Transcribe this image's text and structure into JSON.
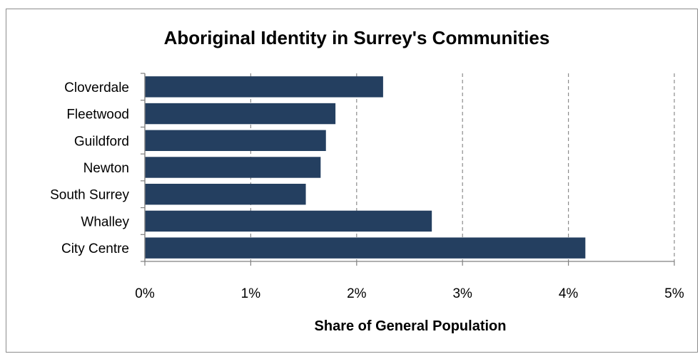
{
  "chart_data": {
    "type": "bar",
    "orientation": "horizontal",
    "title": "Aboriginal Identity in Surrey's Communities",
    "xlabel": "Share of General Population",
    "ylabel": "",
    "categories": [
      "Cloverdale",
      "Fleetwood",
      "Guildford",
      "Newton",
      "South Surrey",
      "Whalley",
      "City Centre"
    ],
    "values": [
      2.25,
      1.8,
      1.71,
      1.66,
      1.52,
      2.71,
      4.16
    ],
    "value_unit": "%",
    "xlim": [
      0,
      5
    ],
    "x_ticks": [
      "0%",
      "1%",
      "2%",
      "3%",
      "4%",
      "5%"
    ],
    "grid": "vertical dashed",
    "bar_color": "#243f60",
    "legend": "none"
  }
}
